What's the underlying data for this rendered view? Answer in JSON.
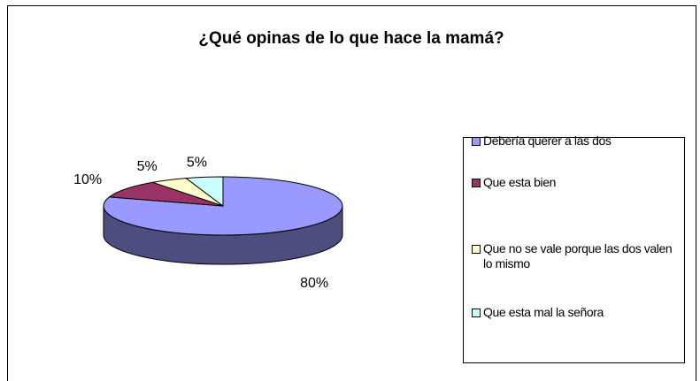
{
  "chart_data": {
    "type": "pie3d",
    "title": "¿Qué opinas de lo que hace la mamá?",
    "categories": [
      "Debería querer a las dos",
      "Que esta bien",
      "Que no se vale porque las dos valen lo mismo",
      "Que esta mal la señora"
    ],
    "values": [
      80,
      10,
      5,
      5
    ],
    "value_labels": [
      "80%",
      "10%",
      "5%",
      "5%"
    ],
    "colors": [
      "#9999ff",
      "#993366",
      "#ffffcc",
      "#ccffff"
    ],
    "legend": "right"
  }
}
